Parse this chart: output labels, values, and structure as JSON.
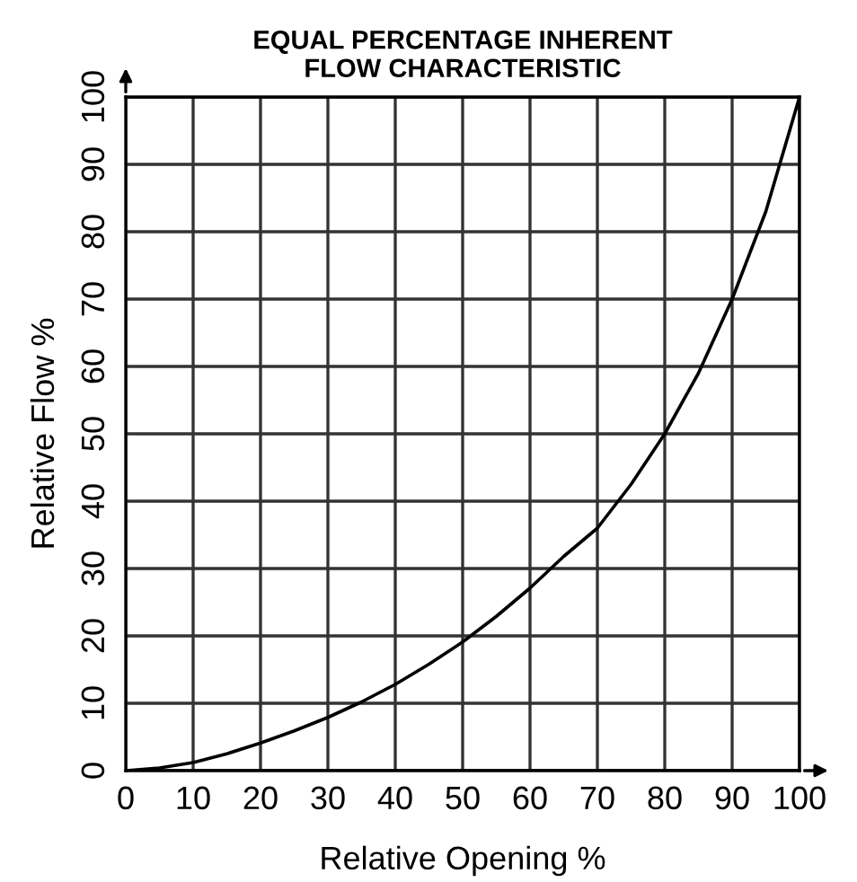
{
  "chart_data": {
    "type": "line",
    "title": "EQUAL PERCENTAGE INHERENT\nFLOW CHARACTERISTIC",
    "xlabel": "Relative Opening %",
    "ylabel": "Relative Flow %",
    "x": [
      0,
      5,
      10,
      15,
      20,
      25,
      30,
      35,
      40,
      45,
      50,
      55,
      60,
      65,
      70,
      75,
      80,
      85,
      90,
      95,
      100
    ],
    "series": [
      {
        "color": "#000000",
        "values": [
          0,
          0.4,
          1.2,
          2.5,
          4.1,
          5.9,
          7.9,
          10.2,
          12.8,
          15.8,
          19.1,
          22.9,
          27.1,
          31.8,
          36,
          42.5,
          50,
          59,
          70,
          83,
          100
        ]
      }
    ],
    "xlim": [
      0,
      100
    ],
    "ylim": [
      0,
      100
    ],
    "xticks": [
      0,
      10,
      20,
      30,
      40,
      50,
      60,
      70,
      80,
      90,
      100
    ],
    "yticks": [
      0,
      10,
      20,
      30,
      40,
      50,
      60,
      70,
      80,
      90,
      100
    ],
    "grid": true,
    "marker": "none",
    "line_style": "solid"
  }
}
